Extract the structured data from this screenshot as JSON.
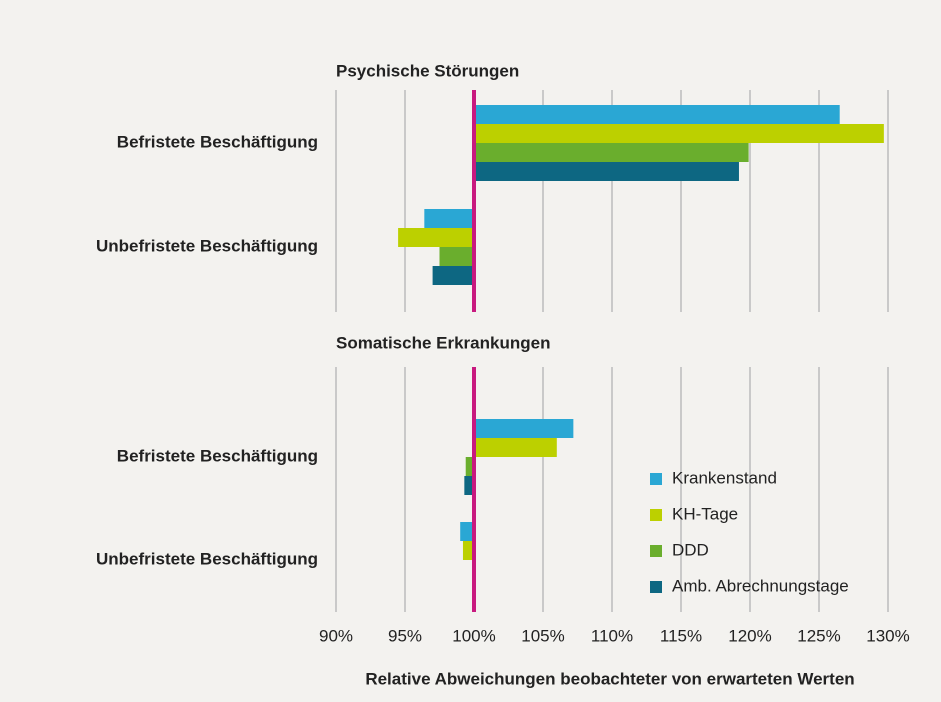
{
  "chart_data": [
    {
      "type": "hbar",
      "title": "Psychische Störungen",
      "categories": [
        "Befristete Beschäftigung",
        "Unbefristete Beschäftigung"
      ],
      "series": [
        {
          "color": "#2aa7d4",
          "values": [
            126.5,
            96.4
          ]
        },
        {
          "color": "#bcd000",
          "values": [
            129.7,
            94.5
          ]
        },
        {
          "color": "#6aae2d",
          "values": [
            119.9,
            97.5
          ]
        },
        {
          "color": "#0d6782",
          "values": [
            119.2,
            97.0
          ]
        }
      ],
      "reference": 100,
      "reference_color": "#c8197f",
      "xlim": [
        90,
        130
      ],
      "xticks": [
        90,
        95,
        100,
        105,
        110,
        115,
        120,
        125,
        130
      ],
      "grid": true
    },
    {
      "type": "hbar",
      "title": "Somatische Erkrankungen",
      "categories": [
        "Befristete Beschäftigung",
        "Unbefristete Beschäftigung"
      ],
      "series": [
        {
          "name": "Krankenstand",
          "color": "#2aa7d4",
          "values": [
            107.2,
            99.0
          ]
        },
        {
          "name": "KH-Tage",
          "color": "#bcd000",
          "values": [
            106.0,
            99.2
          ]
        },
        {
          "name": "DDD",
          "color": "#6aae2d",
          "values": [
            99.4,
            100
          ]
        },
        {
          "name": "Amb. Abrechnungstage",
          "color": "#0d6782",
          "values": [
            99.3,
            100
          ]
        }
      ],
      "reference": 100,
      "reference_color": "#c8197f",
      "xlim": [
        90,
        130
      ],
      "xticks": [
        {
          "value": 90,
          "label": "90%"
        },
        {
          "value": 95,
          "label": "95%"
        },
        {
          "value": 100,
          "label": "100%"
        },
        {
          "value": 105,
          "label": "105%"
        },
        {
          "value": 110,
          "label": "110%"
        },
        {
          "value": 115,
          "label": "115%"
        },
        {
          "value": 120,
          "label": "120%"
        },
        {
          "value": 125,
          "label": "125%"
        },
        {
          "value": 130,
          "label": "130%"
        }
      ],
      "grid": true,
      "legend": "lower right",
      "xlabel": "Relative Abweichungen beobachteter von erwarteten Werten"
    }
  ]
}
